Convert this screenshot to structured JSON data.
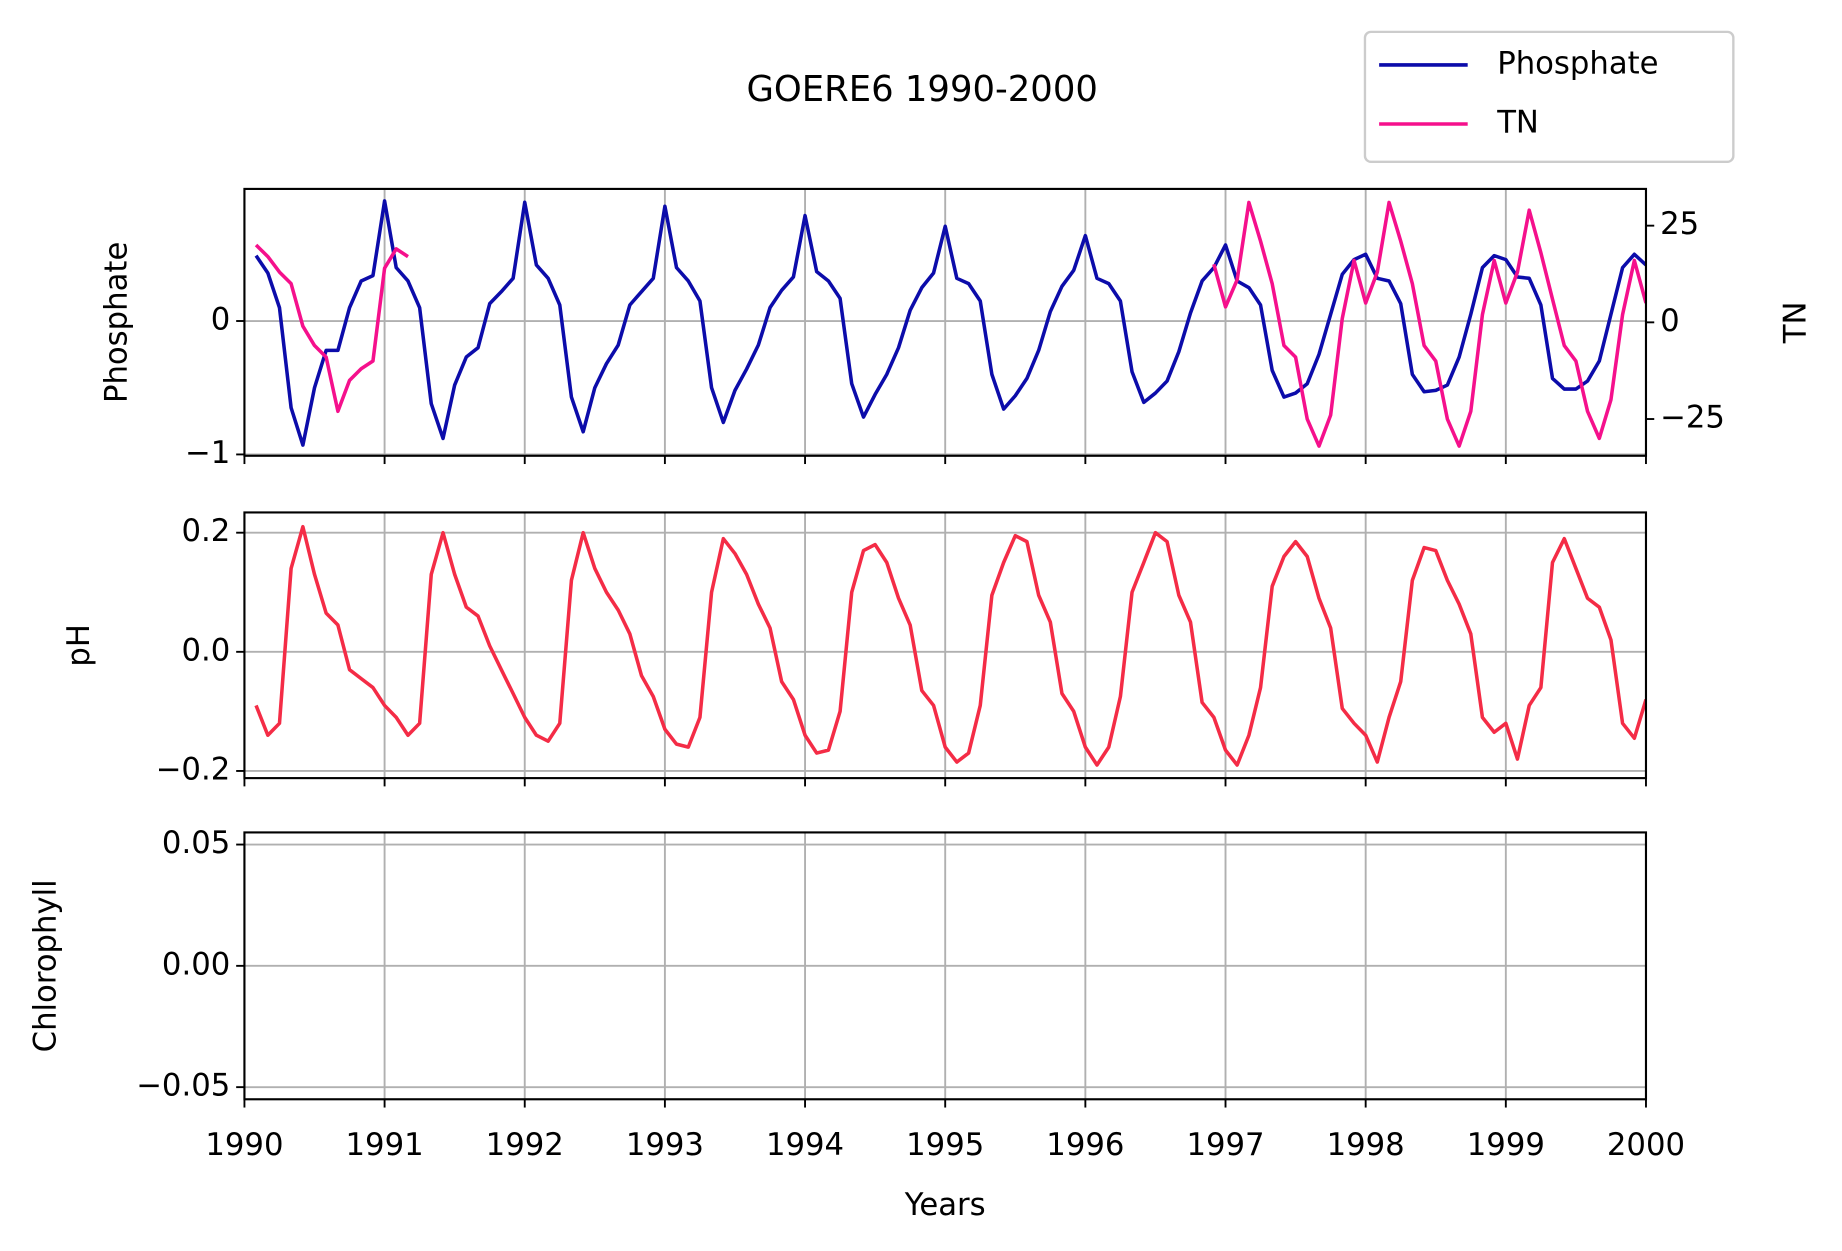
{
  "chart_data": [
    {
      "type": "line",
      "title": "GOERE6 1990-2000",
      "ylabel": "Phosphate",
      "y2label": "TN",
      "legend": "upper right",
      "grid": true,
      "xlim": [
        1990,
        2000
      ],
      "xticks": [
        1990,
        1991,
        1992,
        1993,
        1994,
        1995,
        1996,
        1997,
        1998,
        1999,
        2000
      ],
      "ylim": [
        -1.01,
        0.99
      ],
      "yticks": [
        {
          "value": -1,
          "label": "−1"
        },
        0
      ],
      "y2lim": [
        -34.5,
        34.5
      ],
      "y2ticks": [
        {
          "value": -25,
          "label": "−25"
        },
        0,
        25
      ],
      "x": [
        1990.083,
        1990.167,
        1990.25,
        1990.333,
        1990.417,
        1990.5,
        1990.583,
        1990.667,
        1990.75,
        1990.833,
        1990.917,
        1991,
        1991.083,
        1991.167,
        1991.25,
        1991.333,
        1991.417,
        1991.5,
        1991.583,
        1991.667,
        1991.75,
        1991.833,
        1991.917,
        1992,
        1992.083,
        1992.167,
        1992.25,
        1992.333,
        1992.417,
        1992.5,
        1992.583,
        1992.667,
        1992.75,
        1992.833,
        1992.917,
        1993,
        1993.083,
        1993.167,
        1993.25,
        1993.333,
        1993.417,
        1993.5,
        1993.583,
        1993.667,
        1993.75,
        1993.833,
        1993.917,
        1994,
        1994.083,
        1994.167,
        1994.25,
        1994.333,
        1994.417,
        1994.5,
        1994.583,
        1994.667,
        1994.75,
        1994.833,
        1994.917,
        1995,
        1995.083,
        1995.167,
        1995.25,
        1995.333,
        1995.417,
        1995.5,
        1995.583,
        1995.667,
        1995.75,
        1995.833,
        1995.917,
        1996,
        1996.083,
        1996.167,
        1996.25,
        1996.333,
        1996.417,
        1996.5,
        1996.583,
        1996.667,
        1996.75,
        1996.833,
        1996.917,
        1997,
        1997.083,
        1997.167,
        1997.25,
        1997.333,
        1997.417,
        1997.5,
        1997.583,
        1997.667,
        1997.75,
        1997.833,
        1997.917,
        1998,
        1998.083,
        1998.167,
        1998.25,
        1998.333,
        1998.417,
        1998.5,
        1998.583,
        1998.667,
        1998.75,
        1998.833,
        1998.917,
        1999,
        1999.083,
        1999.167,
        1999.25,
        1999.333,
        1999.417,
        1999.5,
        1999.583,
        1999.667,
        1999.75,
        1999.833,
        1999.917,
        2000
      ],
      "series": [
        {
          "name": "Phosphate",
          "color": "#0c0caa",
          "values": [
            0.49,
            0.36,
            0.1,
            -0.65,
            -0.93,
            -0.5,
            -0.22,
            -0.22,
            0.1,
            0.3,
            0.34,
            0.9,
            0.4,
            0.3,
            0.1,
            -0.62,
            -0.88,
            -0.48,
            -0.27,
            -0.2,
            0.13,
            0.22,
            0.32,
            0.89,
            0.42,
            0.32,
            0.12,
            -0.57,
            -0.83,
            -0.5,
            -0.32,
            -0.18,
            0.12,
            0.22,
            0.32,
            0.86,
            0.4,
            0.3,
            0.15,
            -0.5,
            -0.76,
            -0.52,
            -0.36,
            -0.18,
            0.1,
            0.23,
            0.33,
            0.79,
            0.37,
            0.3,
            0.17,
            -0.47,
            -0.72,
            -0.55,
            -0.4,
            -0.2,
            0.08,
            0.25,
            0.36,
            0.71,
            0.32,
            0.28,
            0.15,
            -0.4,
            -0.66,
            -0.56,
            -0.43,
            -0.22,
            0.07,
            0.26,
            0.38,
            0.64,
            0.32,
            0.28,
            0.15,
            -0.38,
            -0.61,
            -0.54,
            -0.45,
            -0.23,
            0.06,
            0.3,
            0.4,
            0.57,
            0.3,
            0.25,
            0.12,
            -0.37,
            -0.57,
            -0.54,
            -0.47,
            -0.25,
            0.05,
            0.35,
            0.46,
            0.5,
            0.32,
            0.3,
            0.13,
            -0.4,
            -0.53,
            -0.52,
            -0.48,
            -0.27,
            0.05,
            0.4,
            0.49,
            0.46,
            0.33,
            0.32,
            0.12,
            -0.43,
            -0.51,
            -0.51,
            -0.45,
            -0.3,
            0.05,
            0.4,
            0.5,
            0.42
          ]
        },
        {
          "name": "TN",
          "color": "#f5108c",
          "axis": "y2",
          "values": [
            20,
            17,
            13,
            10,
            -1,
            -6,
            -9,
            -23,
            -15,
            -12,
            -10,
            14,
            19,
            17,
            null,
            null,
            null,
            null,
            null,
            null,
            null,
            null,
            null,
            null,
            null,
            null,
            null,
            null,
            null,
            null,
            null,
            null,
            null,
            null,
            null,
            null,
            null,
            null,
            null,
            null,
            null,
            null,
            null,
            null,
            null,
            null,
            null,
            null,
            null,
            null,
            null,
            null,
            null,
            null,
            null,
            null,
            null,
            null,
            null,
            null,
            null,
            null,
            null,
            null,
            null,
            null,
            null,
            null,
            null,
            null,
            null,
            null,
            null,
            null,
            null,
            null,
            null,
            null,
            null,
            null,
            null,
            null,
            15,
            4,
            11,
            31,
            21,
            10,
            -6,
            -9,
            -25,
            -32,
            -24,
            1,
            16,
            5,
            13,
            31,
            21,
            10,
            -6,
            -10,
            -25,
            -32,
            -23,
            2,
            16,
            5,
            13,
            29,
            18,
            6,
            -6,
            -10,
            -23,
            -30,
            -20,
            2,
            16,
            5
          ]
        }
      ]
    },
    {
      "type": "line",
      "ylabel": "pH",
      "grid": true,
      "xlim": [
        1990,
        2000
      ],
      "xticks": [
        1990,
        1991,
        1992,
        1993,
        1994,
        1995,
        1996,
        1997,
        1998,
        1999,
        2000
      ],
      "ylim": [
        -0.212,
        0.234
      ],
      "yticks": [
        {
          "value": -0.2,
          "label": "−0.2"
        },
        {
          "value": 0,
          "label": "0.0"
        },
        0.2
      ],
      "x": [
        1990.083,
        1990.167,
        1990.25,
        1990.333,
        1990.417,
        1990.5,
        1990.583,
        1990.667,
        1990.75,
        1990.833,
        1990.917,
        1991,
        1991.083,
        1991.167,
        1991.25,
        1991.333,
        1991.417,
        1991.5,
        1991.583,
        1991.667,
        1991.75,
        1991.833,
        1991.917,
        1992,
        1992.083,
        1992.167,
        1992.25,
        1992.333,
        1992.417,
        1992.5,
        1992.583,
        1992.667,
        1992.75,
        1992.833,
        1992.917,
        1993,
        1993.083,
        1993.167,
        1993.25,
        1993.333,
        1993.417,
        1993.5,
        1993.583,
        1993.667,
        1993.75,
        1993.833,
        1993.917,
        1994,
        1994.083,
        1994.167,
        1994.25,
        1994.333,
        1994.417,
        1994.5,
        1994.583,
        1994.667,
        1994.75,
        1994.833,
        1994.917,
        1995,
        1995.083,
        1995.167,
        1995.25,
        1995.333,
        1995.417,
        1995.5,
        1995.583,
        1995.667,
        1995.75,
        1995.833,
        1995.917,
        1996,
        1996.083,
        1996.167,
        1996.25,
        1996.333,
        1996.417,
        1996.5,
        1996.583,
        1996.667,
        1996.75,
        1996.833,
        1996.917,
        1997,
        1997.083,
        1997.167,
        1997.25,
        1997.333,
        1997.417,
        1997.5,
        1997.583,
        1997.667,
        1997.75,
        1997.833,
        1997.917,
        1998,
        1998.083,
        1998.167,
        1998.25,
        1998.333,
        1998.417,
        1998.5,
        1998.583,
        1998.667,
        1998.75,
        1998.833,
        1998.917,
        1999,
        1999.083,
        1999.167,
        1999.25,
        1999.333,
        1999.417,
        1999.5,
        1999.583,
        1999.667,
        1999.75,
        1999.833,
        1999.917,
        2000
      ],
      "series": [
        {
          "color": "#f42c46",
          "values": [
            -0.09,
            -0.14,
            -0.12,
            0.14,
            0.21,
            0.13,
            0.065,
            0.045,
            -0.03,
            -0.045,
            -0.06,
            -0.09,
            -0.11,
            -0.14,
            -0.12,
            0.13,
            0.2,
            0.13,
            0.075,
            0.06,
            0.01,
            -0.03,
            -0.07,
            -0.11,
            -0.14,
            -0.15,
            -0.12,
            0.12,
            0.2,
            0.14,
            0.1,
            0.07,
            0.03,
            -0.04,
            -0.075,
            -0.13,
            -0.155,
            -0.16,
            -0.11,
            0.1,
            0.19,
            0.165,
            0.13,
            0.08,
            0.04,
            -0.05,
            -0.08,
            -0.14,
            -0.17,
            -0.165,
            -0.1,
            0.1,
            0.17,
            0.18,
            0.15,
            0.09,
            0.045,
            -0.065,
            -0.09,
            -0.16,
            -0.185,
            -0.17,
            -0.09,
            0.095,
            0.15,
            0.195,
            0.185,
            0.095,
            0.05,
            -0.07,
            -0.1,
            -0.16,
            -0.19,
            -0.16,
            -0.075,
            0.1,
            0.15,
            0.2,
            0.185,
            0.095,
            0.05,
            -0.085,
            -0.11,
            -0.165,
            -0.19,
            -0.14,
            -0.06,
            0.11,
            0.16,
            0.185,
            0.16,
            0.09,
            0.04,
            -0.095,
            -0.12,
            -0.14,
            -0.185,
            -0.11,
            -0.05,
            0.12,
            0.175,
            0.17,
            0.12,
            0.08,
            0.03,
            -0.11,
            -0.135,
            -0.12,
            -0.18,
            -0.09,
            -0.06,
            0.15,
            0.19,
            0.14,
            0.09,
            0.075,
            0.02,
            -0.12,
            -0.145,
            -0.08
          ]
        }
      ]
    },
    {
      "type": "line",
      "ylabel": "Chlorophyll",
      "xlabel": "Years",
      "grid": true,
      "xlim": [
        1990,
        2000
      ],
      "xticks": [
        1990,
        1991,
        1992,
        1993,
        1994,
        1995,
        1996,
        1997,
        1998,
        1999,
        2000
      ],
      "ylim": [
        -0.055,
        0.055
      ],
      "yticks": [
        {
          "value": -0.05,
          "label": "−0.05"
        },
        {
          "value": 0,
          "label": "0.00"
        },
        0.05
      ],
      "series": []
    }
  ]
}
